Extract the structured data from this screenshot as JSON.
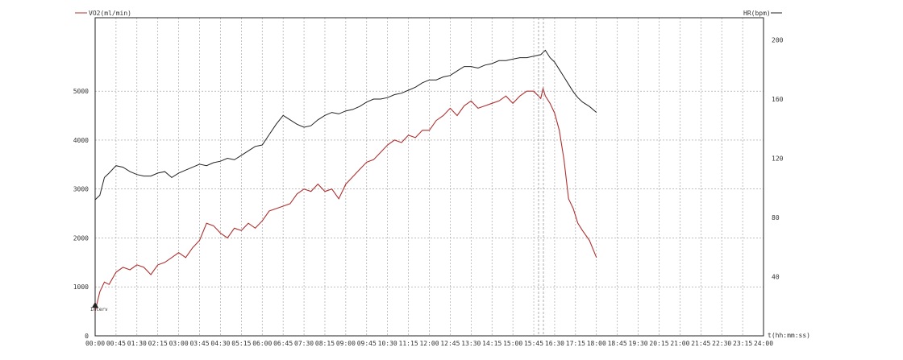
{
  "chart_data": {
    "type": "line",
    "xlabel": "t(hh:mm:ss)",
    "ylabel_left": "VO2(ml/min)",
    "ylabel_right": "HR(bpm)",
    "x_range_seconds": [
      0,
      1440
    ],
    "ylim_left": [
      0,
      6500
    ],
    "ylim_right": [
      0,
      215
    ],
    "x_tick_labels": [
      "00:00",
      "00:45",
      "01:30",
      "02:15",
      "03:00",
      "03:45",
      "04:30",
      "05:15",
      "06:00",
      "06:45",
      "07:30",
      "08:15",
      "09:00",
      "09:45",
      "10:30",
      "11:15",
      "12:00",
      "12:45",
      "13:30",
      "14:15",
      "15:00",
      "15:45",
      "16:30",
      "17:15",
      "18:00",
      "18:45",
      "19:30",
      "20:15",
      "21:00",
      "21:45",
      "22:30",
      "23:15",
      "24:00"
    ],
    "y_left_ticks": [
      0,
      1000,
      2000,
      3000,
      4000,
      5000
    ],
    "y_right_ticks": [
      40,
      80,
      120,
      160,
      200
    ],
    "grid": true,
    "marker_label": "Interv",
    "series": [
      {
        "name": "VO2(ml/min)",
        "axis": "left",
        "color": "#b03030",
        "x": [
          "00:00",
          "00:10",
          "00:20",
          "00:30",
          "00:45",
          "01:00",
          "01:15",
          "01:30",
          "01:45",
          "02:00",
          "02:15",
          "02:30",
          "02:45",
          "03:00",
          "03:15",
          "03:30",
          "03:45",
          "04:00",
          "04:15",
          "04:30",
          "04:45",
          "05:00",
          "05:15",
          "05:30",
          "05:45",
          "06:00",
          "06:15",
          "06:30",
          "06:45",
          "07:00",
          "07:15",
          "07:30",
          "07:45",
          "08:00",
          "08:15",
          "08:30",
          "08:45",
          "09:00",
          "09:15",
          "09:30",
          "09:45",
          "10:00",
          "10:15",
          "10:30",
          "10:45",
          "11:00",
          "11:15",
          "11:30",
          "11:45",
          "12:00",
          "12:15",
          "12:30",
          "12:45",
          "13:00",
          "13:15",
          "13:30",
          "13:45",
          "14:00",
          "14:15",
          "14:30",
          "14:45",
          "15:00",
          "15:15",
          "15:30",
          "15:45",
          "16:00",
          "16:05",
          "16:10",
          "16:20",
          "16:30",
          "16:40",
          "16:50",
          "17:00",
          "17:10",
          "17:20",
          "17:30",
          "17:45",
          "18:00"
        ],
        "values": [
          500,
          900,
          1100,
          1050,
          1300,
          1400,
          1350,
          1450,
          1400,
          1250,
          1450,
          1500,
          1600,
          1700,
          1600,
          1800,
          1950,
          2300,
          2250,
          2100,
          2000,
          2200,
          2150,
          2300,
          2200,
          2350,
          2550,
          2600,
          2650,
          2700,
          2900,
          3000,
          2950,
          3100,
          2950,
          3000,
          2800,
          3100,
          3250,
          3400,
          3550,
          3600,
          3750,
          3900,
          4000,
          3950,
          4100,
          4050,
          4200,
          4200,
          4400,
          4500,
          4650,
          4500,
          4700,
          4800,
          4650,
          4700,
          4750,
          4800,
          4900,
          4750,
          4900,
          5000,
          5000,
          4850,
          5050,
          4900,
          4750,
          4550,
          4200,
          3600,
          2800,
          2600,
          2300,
          2150,
          1950,
          1600
        ]
      },
      {
        "name": "HR(bpm)",
        "axis": "right",
        "color": "#222222",
        "x": [
          "00:00",
          "00:10",
          "00:20",
          "00:30",
          "00:45",
          "01:00",
          "01:15",
          "01:30",
          "01:45",
          "02:00",
          "02:15",
          "02:30",
          "02:45",
          "03:00",
          "03:15",
          "03:30",
          "03:45",
          "04:00",
          "04:15",
          "04:30",
          "04:45",
          "05:00",
          "05:15",
          "05:30",
          "05:45",
          "06:00",
          "06:15",
          "06:30",
          "06:45",
          "07:00",
          "07:15",
          "07:30",
          "07:45",
          "08:00",
          "08:15",
          "08:30",
          "08:45",
          "09:00",
          "09:15",
          "09:30",
          "09:45",
          "10:00",
          "10:15",
          "10:30",
          "10:45",
          "11:00",
          "11:15",
          "11:30",
          "11:45",
          "12:00",
          "12:15",
          "12:30",
          "12:45",
          "13:00",
          "13:15",
          "13:30",
          "13:45",
          "14:00",
          "14:15",
          "14:30",
          "14:45",
          "15:00",
          "15:15",
          "15:30",
          "15:45",
          "16:00",
          "16:10",
          "16:20",
          "16:30",
          "16:40",
          "16:50",
          "17:00",
          "17:10",
          "17:20",
          "17:30",
          "17:45",
          "18:00"
        ],
        "values": [
          92,
          95,
          107,
          110,
          115,
          114,
          111,
          109,
          108,
          108,
          110,
          111,
          107,
          110,
          112,
          114,
          116,
          115,
          117,
          118,
          120,
          119,
          122,
          125,
          128,
          129,
          136,
          143,
          149,
          146,
          143,
          141,
          142,
          146,
          149,
          151,
          150,
          152,
          153,
          155,
          158,
          160,
          160,
          161,
          163,
          164,
          166,
          168,
          171,
          173,
          173,
          175,
          176,
          179,
          182,
          182,
          181,
          183,
          184,
          186,
          186,
          187,
          188,
          188,
          189,
          190,
          193,
          188,
          185,
          180,
          175,
          170,
          165,
          161,
          158,
          155,
          151
        ]
      }
    ]
  }
}
